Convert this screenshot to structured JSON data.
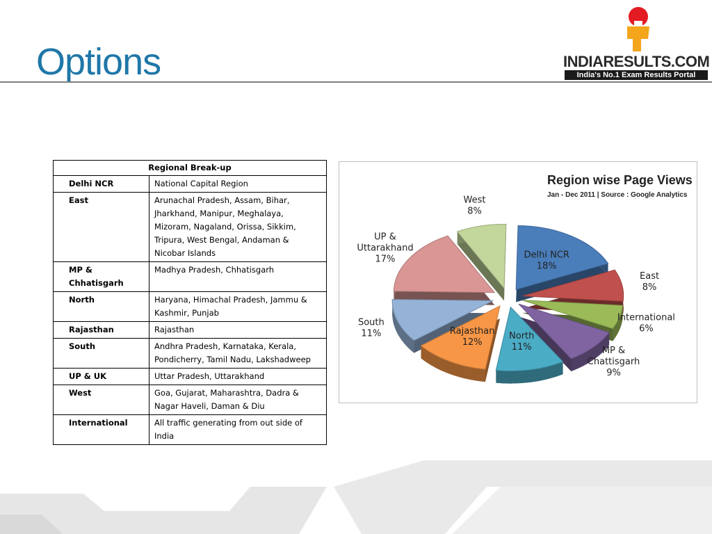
{
  "slide": {
    "title": "Options",
    "logo_text": "INDIARESULTS.COM",
    "logo_tagline": "India's No.1 Exam Results Portal"
  },
  "table": {
    "header": "Regional Break-up",
    "rows": [
      {
        "region": "Delhi NCR",
        "states": "National Capital Region"
      },
      {
        "region": "East",
        "states": "Arunachal Pradesh, Assam, Bihar, Jharkhand, Manipur, Meghalaya, Mizoram, Nagaland, Orissa, Sikkim, Tripura, West Bengal, Andaman & Nicobar Islands"
      },
      {
        "region": "MP & Chhatisgarh",
        "states": "Madhya Pradesh, Chhatisgarh"
      },
      {
        "region": "North",
        "states": "Haryana, Himachal Pradesh, Jammu & Kashmir, Punjab"
      },
      {
        "region": "Rajasthan",
        "states": "Rajasthan"
      },
      {
        "region": "South",
        "states": "Andhra Pradesh, Karnataka, Kerala, Pondicherry, Tamil Nadu, Lakshadweep"
      },
      {
        "region": "UP & UK",
        "states": "Uttar Pradesh, Uttarakhand"
      },
      {
        "region": "West",
        "states": "Goa, Gujarat, Maharashtra, Dadra & Nagar Haveli, Daman & Diu"
      },
      {
        "region": "International",
        "states": "All traffic generating from out side of India"
      }
    ]
  },
  "chart_data": {
    "type": "pie",
    "title": "Region wise Page Views",
    "subtitle": "Jan - Dec 2011 | Source : Google Analytics",
    "exploded": true,
    "style": "3d",
    "slices": [
      {
        "label": "Delhi NCR",
        "value": 18,
        "value_label": "18%",
        "color": "#4a7ebb"
      },
      {
        "label": "East",
        "value": 8,
        "value_label": "8%",
        "color": "#c0504d"
      },
      {
        "label": "International",
        "value": 6,
        "value_label": "6%",
        "color": "#9bbb59"
      },
      {
        "label": "MP & Chattisgarh",
        "value": 9,
        "value_label": "9%",
        "color": "#8064a2"
      },
      {
        "label": "North",
        "value": 11,
        "value_label": "11%",
        "color": "#4bacc6"
      },
      {
        "label": "Rajasthan",
        "value": 12,
        "value_label": "12%",
        "color": "#f79646"
      },
      {
        "label": "South",
        "value": 11,
        "value_label": "11%",
        "color": "#95b3d7"
      },
      {
        "label": "UP & Uttarakhand",
        "value": 17,
        "value_label": "17%",
        "color": "#d99694"
      },
      {
        "label": "West",
        "value": 8,
        "value_label": "8%",
        "color": "#c3d69b"
      }
    ]
  }
}
